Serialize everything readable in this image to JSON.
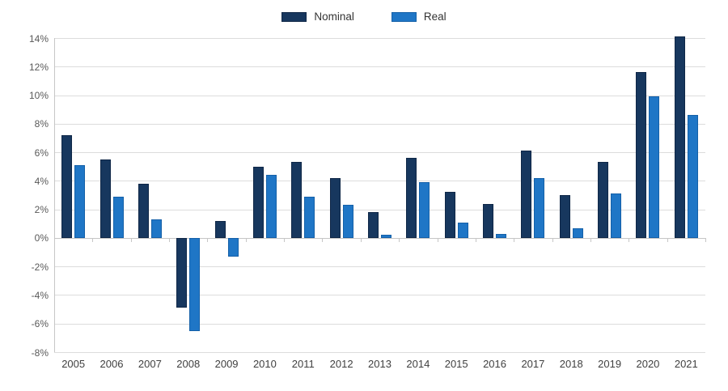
{
  "legend": {
    "items": [
      {
        "label": "Nominal",
        "color": "#17375e",
        "border": "#0f2747"
      },
      {
        "label": "Real",
        "color": "#1f76c6",
        "border": "#1460a8"
      }
    ]
  },
  "chart_data": {
    "type": "bar",
    "title": "",
    "xlabel": "",
    "ylabel": "",
    "categories": [
      "2005",
      "2006",
      "2007",
      "2008",
      "2009",
      "2010",
      "2011",
      "2012",
      "2013",
      "2014",
      "2015",
      "2016",
      "2017",
      "2018",
      "2019",
      "2020",
      "2021"
    ],
    "series": [
      {
        "name": "Nominal",
        "color": "#17375e",
        "border_color": "#0f2747",
        "values": [
          7.2,
          5.5,
          3.8,
          -4.9,
          1.2,
          5.0,
          5.3,
          4.2,
          1.8,
          5.6,
          3.2,
          2.4,
          6.1,
          3.0,
          5.3,
          11.6,
          14.1
        ]
      },
      {
        "name": "Real",
        "color": "#1f76c6",
        "border_color": "#1460a8",
        "values": [
          5.1,
          2.9,
          1.3,
          -6.5,
          -1.3,
          4.4,
          2.9,
          2.3,
          0.2,
          3.9,
          1.1,
          0.3,
          4.2,
          0.7,
          3.1,
          9.9,
          8.6
        ]
      }
    ],
    "ylim": [
      -8,
      14
    ],
    "ytick_step": 2,
    "ytick_labels": [
      "14%",
      "12%",
      "10%",
      "8%",
      "6%",
      "4%",
      "2%",
      "0%",
      "-2%",
      "-4%",
      "-6%",
      "-8%"
    ],
    "grid": true,
    "legend_position": "top",
    "value_unit": "%"
  },
  "colors": {
    "background": "#ffffff",
    "gridline": "#dcdcdc",
    "axis": "#c6c6c6",
    "y_label_text": "#595959",
    "x_label_text": "#3f3f3f",
    "legend_text": "#333333"
  }
}
